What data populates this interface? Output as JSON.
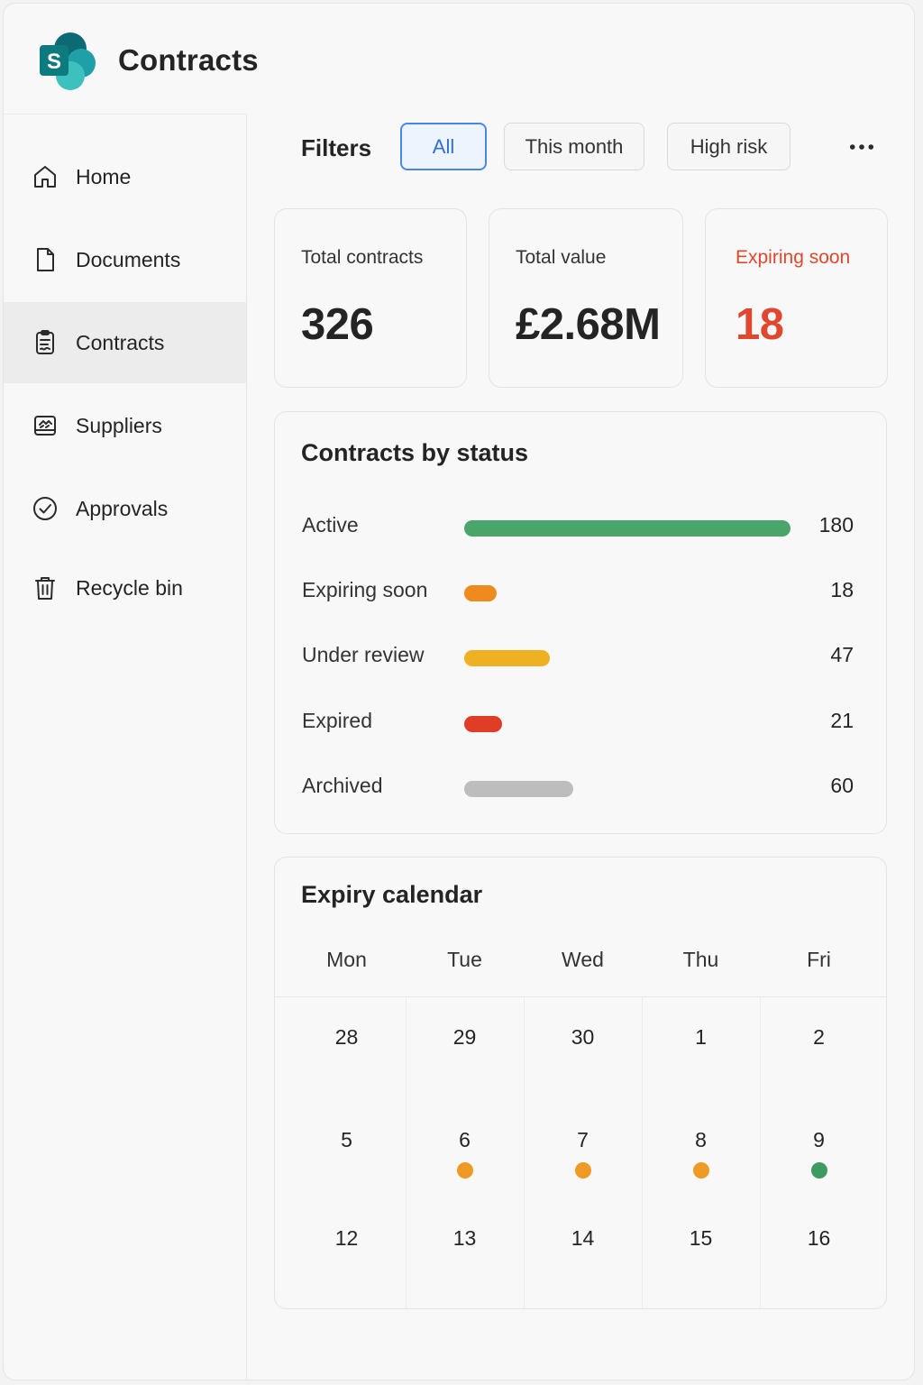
{
  "app": {
    "title": "Contracts",
    "logo_letter": "S"
  },
  "sidebar": {
    "items": [
      {
        "label": "Home",
        "icon": "home-icon",
        "active": false
      },
      {
        "label": "Documents",
        "icon": "document-icon",
        "active": false
      },
      {
        "label": "Contracts",
        "icon": "contract-icon",
        "active": true
      },
      {
        "label": "Suppliers",
        "icon": "suppliers-icon",
        "active": false
      },
      {
        "label": "Approvals",
        "icon": "checkmark-circle-icon",
        "active": false
      },
      {
        "label": "Recycle bin",
        "icon": "trash-icon",
        "active": false
      }
    ]
  },
  "filters": {
    "label": "Filters",
    "chips": [
      {
        "label": "All",
        "selected": true
      },
      {
        "label": "This month",
        "selected": false
      },
      {
        "label": "High risk",
        "selected": false
      }
    ],
    "more_icon": "more-horizontal-icon"
  },
  "stats": [
    {
      "label": "Total contracts",
      "value": "326"
    },
    {
      "label": "Total value",
      "value": "£2.68M"
    },
    {
      "label": "Expiring soon",
      "value": "18",
      "accent": "#e0472f"
    }
  ],
  "status_chart": {
    "title": "Contracts by status",
    "max": 180,
    "rows": [
      {
        "label": "Active",
        "value": 180,
        "color": "#4aa56b"
      },
      {
        "label": "Expiring soon",
        "value": 18,
        "color": "#ee8a1e"
      },
      {
        "label": "Under review",
        "value": 47,
        "color": "#f0b023"
      },
      {
        "label": "Expired",
        "value": 21,
        "color": "#e03c26"
      },
      {
        "label": "Archived",
        "value": 60,
        "color": "#bdbdbd"
      }
    ]
  },
  "calendar": {
    "title": "Expiry calendar",
    "days": [
      "Mon",
      "Tue",
      "Wed",
      "Thu",
      "Fri"
    ],
    "weeks": [
      [
        {
          "d": "28"
        },
        {
          "d": "29"
        },
        {
          "d": "30"
        },
        {
          "d": "1"
        },
        {
          "d": "2"
        }
      ],
      [
        {
          "d": "5"
        },
        {
          "d": "6",
          "dot": "#ee9a24"
        },
        {
          "d": "7",
          "dot": "#ee9a24"
        },
        {
          "d": "8",
          "dot": "#ee9a24"
        },
        {
          "d": "9",
          "dot": "#3f9a5f"
        }
      ],
      [
        {
          "d": "12"
        },
        {
          "d": "13"
        },
        {
          "d": "14"
        },
        {
          "d": "15"
        },
        {
          "d": "16"
        }
      ]
    ]
  }
}
